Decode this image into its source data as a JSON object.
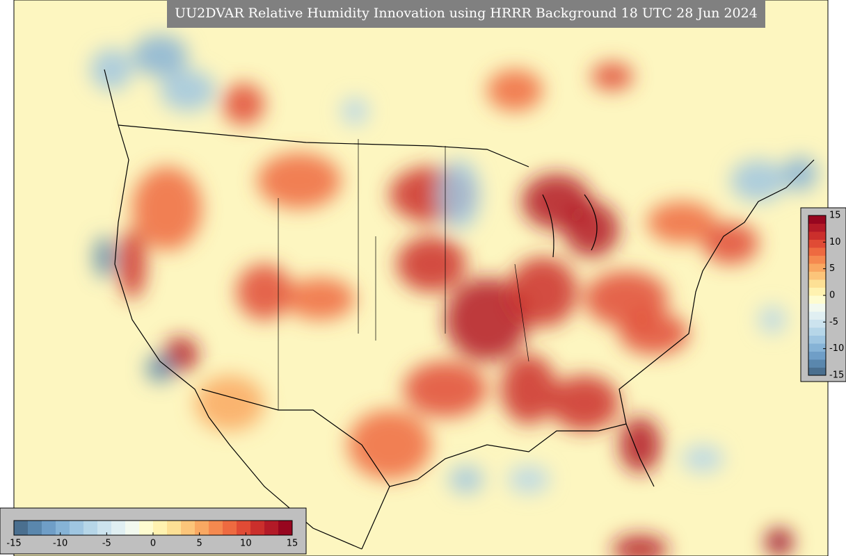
{
  "title": "UU2DVAR Relative Humidity Innovation using HRRR Background 18 UTC 28 Jun 2024",
  "colorbar": {
    "range": [
      -15,
      15
    ],
    "ticks": [
      -15,
      -10,
      -5,
      0,
      5,
      10,
      15
    ],
    "colors": [
      "#4a6f8f",
      "#5a87ad",
      "#6f9ec7",
      "#86b3d6",
      "#9fc6e1",
      "#b6d6e8",
      "#cce3ee",
      "#e0eff2",
      "#f2f9ef",
      "#fefcd0",
      "#fff2b0",
      "#fde095",
      "#fcc57a",
      "#f9a862",
      "#f5894f",
      "#ee6a40",
      "#e04b35",
      "#cb2f2c",
      "#b31a27",
      "#97061f"
    ]
  }
}
